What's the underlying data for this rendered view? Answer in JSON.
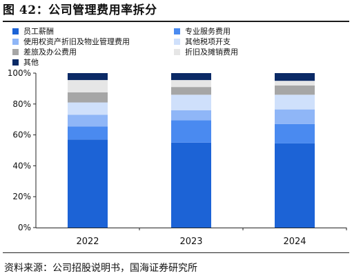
{
  "title": "图 42：公司管理费用率拆分",
  "source": "资料来源：公司招股说明书，国海证券研究所",
  "chart_data": {
    "type": "bar",
    "stacked": true,
    "categories": [
      "2022",
      "2023",
      "2024"
    ],
    "ylim": [
      0,
      100
    ],
    "yticks": [
      "0%",
      "20%",
      "40%",
      "60%",
      "80%",
      "100%"
    ],
    "ytick_values": [
      0,
      20,
      40,
      60,
      80,
      100
    ],
    "series": [
      {
        "name": "员工薪酬",
        "color": "#1c63d6",
        "values": [
          57,
          55,
          54.5
        ]
      },
      {
        "name": "专业服务费用",
        "color": "#4a8af0",
        "values": [
          8.5,
          14.5,
          12.5
        ]
      },
      {
        "name": "使用权资产折旧及物业管理费用",
        "color": "#8fb6f7",
        "values": [
          7.5,
          6.5,
          9.5
        ]
      },
      {
        "name": "其他税项开支",
        "color": "#cfe0fb",
        "values": [
          8,
          10,
          9.5
        ]
      },
      {
        "name": "差旅及办公费用",
        "color": "#a6a6a6",
        "values": [
          6.5,
          5,
          6
        ]
      },
      {
        "name": "折旧及摊销费用",
        "color": "#e6e6e6",
        "values": [
          8,
          4.5,
          3
        ]
      },
      {
        "name": "其他",
        "color": "#0b2a66",
        "values": [
          4.5,
          4.5,
          5
        ]
      }
    ]
  }
}
